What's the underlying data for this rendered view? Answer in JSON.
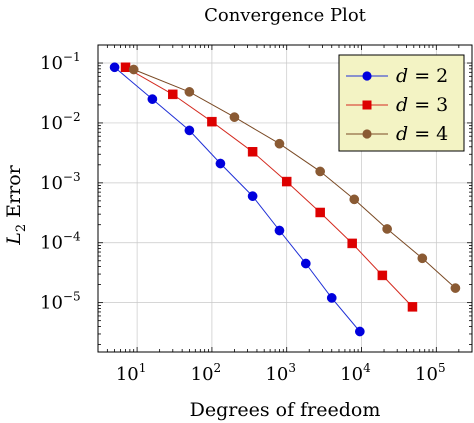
{
  "chart_data": {
    "type": "line",
    "title": "Convergence Plot",
    "xlabel": "Degrees of freedom",
    "ylabel": "L2 Error",
    "ylabel_parts": {
      "base": "L",
      "sub": "2",
      "rest": "Error"
    },
    "xscale": "log",
    "yscale": "log",
    "xlim": [
      3,
      300000
    ],
    "ylim": [
      1.5e-06,
      0.2
    ],
    "grid": true,
    "legend_position": "top-right",
    "x_ticks": [
      {
        "base": "10",
        "exp": "1",
        "value": 10
      },
      {
        "base": "10",
        "exp": "2",
        "value": 100
      },
      {
        "base": "10",
        "exp": "3",
        "value": 1000
      },
      {
        "base": "10",
        "exp": "4",
        "value": 10000
      },
      {
        "base": "10",
        "exp": "5",
        "value": 100000
      }
    ],
    "y_ticks": [
      {
        "base": "10",
        "exp": "−1",
        "value": 0.1
      },
      {
        "base": "10",
        "exp": "−2",
        "value": 0.01
      },
      {
        "base": "10",
        "exp": "−3",
        "value": 0.001
      },
      {
        "base": "10",
        "exp": "−4",
        "value": 0.0001
      },
      {
        "base": "10",
        "exp": "−5",
        "value": 1e-05
      }
    ],
    "series": [
      {
        "name": "d = 2",
        "legend_var": "d",
        "legend_rest": " = 2",
        "color": "#0000dd",
        "line_color": "#1f2fd6",
        "marker": "circle",
        "x": [
          5,
          16,
          50,
          130,
          350,
          800,
          1800,
          4000,
          9500
        ],
        "y": [
          0.085,
          0.025,
          0.0075,
          0.0021,
          0.0006,
          0.00016,
          4.5e-05,
          1.2e-05,
          3.3e-06
        ]
      },
      {
        "name": "d = 3",
        "legend_var": "d",
        "legend_rest": " = 3",
        "color": "#dd0000",
        "line_color": "#d42a1f",
        "marker": "square",
        "x": [
          7,
          30,
          100,
          350,
          1000,
          2800,
          7500,
          19000,
          48000
        ],
        "y": [
          0.085,
          0.03,
          0.0105,
          0.0033,
          0.00105,
          0.00032,
          9.75e-05,
          2.85e-05,
          8.5e-06
        ]
      },
      {
        "name": "d = 4",
        "legend_var": "d",
        "legend_rest": " = 4",
        "color": "#8a5a33",
        "line_color": "#7a4a25",
        "marker": "circle",
        "x": [
          9,
          50,
          200,
          800,
          2800,
          8000,
          22000,
          65000,
          180000
        ],
        "y": [
          0.078,
          0.033,
          0.0125,
          0.0045,
          0.00155,
          0.00053,
          0.00017,
          5.5e-05,
          1.75e-05
        ]
      }
    ]
  }
}
